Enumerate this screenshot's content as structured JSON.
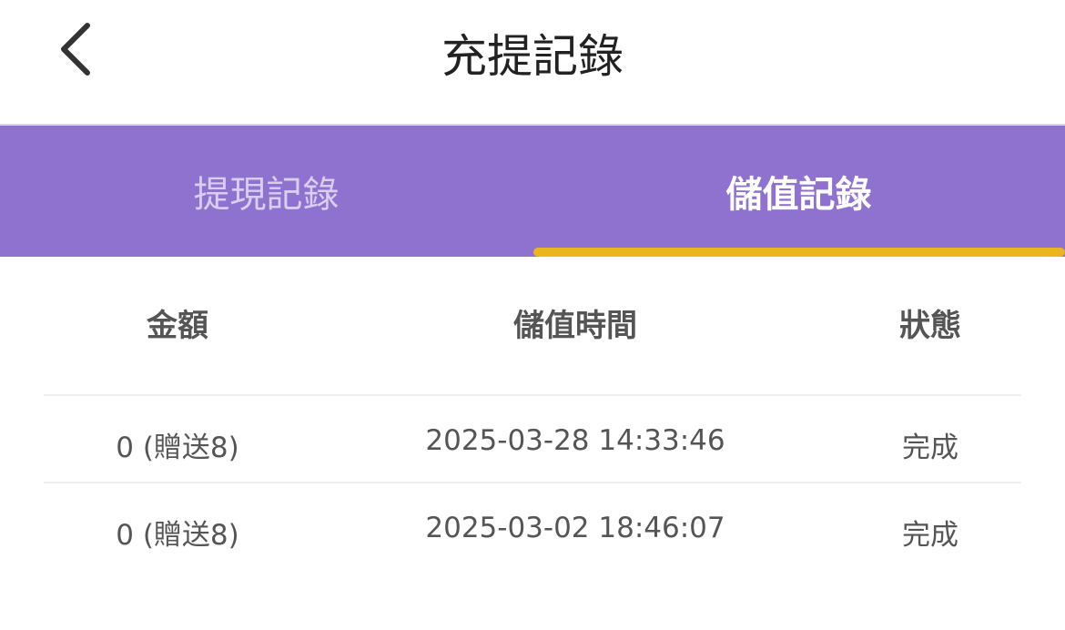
{
  "header": {
    "title": "充提記錄",
    "back_icon": "chevron-left-icon"
  },
  "tabs": [
    {
      "label": "提現記錄",
      "active": false
    },
    {
      "label": "儲值記錄",
      "active": true
    }
  ],
  "colors": {
    "tab_bar": "#8f72cf",
    "indicator": "#ebb51f"
  },
  "table": {
    "headers": [
      "金額",
      "儲值時間",
      "狀態"
    ],
    "rows": [
      {
        "amount": "0 (贈送8)",
        "time": "2025-03-28 14:33:46",
        "status": "完成"
      },
      {
        "amount": "0 (贈送8)",
        "time": "2025-03-02 18:46:07",
        "status": "完成"
      }
    ]
  }
}
